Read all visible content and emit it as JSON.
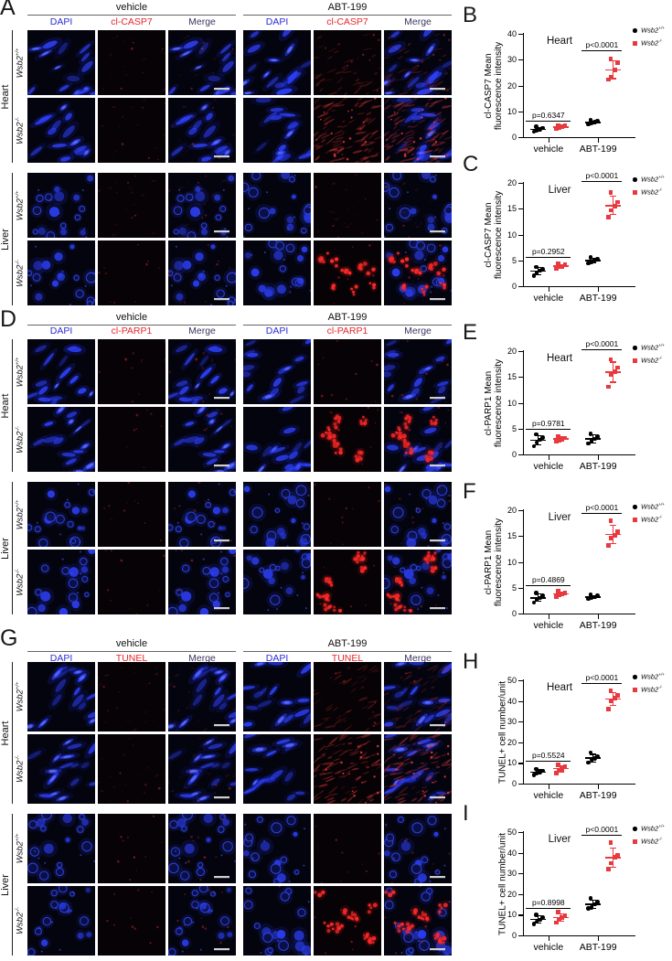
{
  "figure": {
    "treatments": [
      "vehicle",
      "ABT-199"
    ],
    "legend": {
      "wildtype": {
        "base": "Wsb2",
        "sup": "+/+"
      },
      "knockout": {
        "base": "Wsb2",
        "sup": "-/-"
      }
    },
    "colors": {
      "dapi_label": "#2b2bd8",
      "marker_label": "#e8262c",
      "merge_label": "#3b3560",
      "wildtype_point": "#000000",
      "knockout_point": "#e8393f",
      "nucleus_blue": "#2e40f5",
      "signal_red": "#d83838",
      "scalebar": "#cfcfcf"
    },
    "micro_panels": [
      {
        "letter": "A",
        "marker": "cl-CASP7",
        "columns": [
          "DAPI",
          "cl-CASP7",
          "Merge"
        ],
        "rows": [
          {
            "organ": "Heart",
            "morphology": "elongated",
            "genotype": "wildtype",
            "style": "haze",
            "levels": {
              "vehicle": 1,
              "abt": 2
            }
          },
          {
            "organ": "Heart",
            "morphology": "elongated",
            "genotype": "knockout",
            "style": "haze",
            "levels": {
              "vehicle": 1,
              "abt": 3
            }
          },
          {
            "organ": "Liver",
            "morphology": "round",
            "genotype": "wildtype",
            "style": "haze",
            "levels": {
              "vehicle": 1,
              "abt": 1
            }
          },
          {
            "organ": "Liver",
            "morphology": "round",
            "genotype": "knockout",
            "style": "dots",
            "levels": {
              "vehicle": 1,
              "abt": 3
            }
          }
        ]
      },
      {
        "letter": "D",
        "marker": "cl-PARP1",
        "columns": [
          "DAPI",
          "cl-PARP1",
          "Merge"
        ],
        "rows": [
          {
            "organ": "Heart",
            "morphology": "elongated",
            "genotype": "wildtype",
            "style": "dots",
            "levels": {
              "vehicle": 1,
              "abt": 1
            }
          },
          {
            "organ": "Heart",
            "morphology": "elongated",
            "genotype": "knockout",
            "style": "dots",
            "levels": {
              "vehicle": 1,
              "abt": 3
            }
          },
          {
            "organ": "Liver",
            "morphology": "round",
            "genotype": "wildtype",
            "style": "dots",
            "levels": {
              "vehicle": 1,
              "abt": 1
            }
          },
          {
            "organ": "Liver",
            "morphology": "round",
            "genotype": "knockout",
            "style": "dots",
            "levels": {
              "vehicle": 1,
              "abt": 3
            }
          }
        ]
      },
      {
        "letter": "G",
        "marker": "TUNEL",
        "columns": [
          "DAPI",
          "TUNEL",
          "Merge"
        ],
        "rows": [
          {
            "organ": "Heart",
            "morphology": "elongated",
            "genotype": "wildtype",
            "style": "haze",
            "levels": {
              "vehicle": 1,
              "abt": 2
            }
          },
          {
            "organ": "Heart",
            "morphology": "elongated",
            "genotype": "knockout",
            "style": "haze",
            "levels": {
              "vehicle": 1,
              "abt": 3
            }
          },
          {
            "organ": "Liver",
            "morphology": "round",
            "genotype": "wildtype",
            "style": "dots",
            "levels": {
              "vehicle": 1,
              "abt": 1
            }
          },
          {
            "organ": "Liver",
            "morphology": "round",
            "genotype": "knockout",
            "style": "dots",
            "levels": {
              "vehicle": 1,
              "abt": 3
            }
          }
        ]
      }
    ],
    "chart_data": [
      {
        "letter": "B",
        "type": "scatter",
        "title": "Heart",
        "ylabel_lines": [
          "cl-CASP7 Mean",
          "fluorescence intensity"
        ],
        "ylim": [
          0,
          40
        ],
        "yticks": [
          0,
          10,
          20,
          30,
          40
        ],
        "categories": [
          "vehicle",
          "ABT-199"
        ],
        "series": [
          {
            "name": "wildtype",
            "marker": "circle",
            "values": {
              "vehicle": [
                2.1,
                2.6,
                3.1,
                3.6,
                4.1
              ],
              "ABT-199": [
                5.0,
                5.4,
                5.8,
                6.1,
                6.5
              ]
            }
          },
          {
            "name": "knockout",
            "marker": "square",
            "values": {
              "vehicle": [
                3.3,
                3.7,
                4.0,
                4.3,
                4.6
              ],
              "ABT-199": [
                22.3,
                23.2,
                26.0,
                28.8,
                30.2
              ]
            }
          }
        ],
        "pvalues": {
          "vehicle": {
            "text": "p=0.6347",
            "line_y": 6.2
          },
          "ABT-199": {
            "text": "p<0.0001",
            "line_y": 33.5
          }
        }
      },
      {
        "letter": "C",
        "type": "scatter",
        "title": "Liver",
        "ylabel_lines": [
          "cl-CASP7 Mean",
          "fluorescence intensity"
        ],
        "ylim": [
          0,
          20
        ],
        "yticks": [
          0,
          5,
          10,
          15,
          20
        ],
        "categories": [
          "vehicle",
          "ABT-199"
        ],
        "series": [
          {
            "name": "wildtype",
            "marker": "circle",
            "values": {
              "vehicle": [
                2.0,
                2.6,
                3.0,
                3.3,
                3.7
              ],
              "ABT-199": [
                4.4,
                4.7,
                5.0,
                5.2,
                5.6
              ]
            }
          },
          {
            "name": "knockout",
            "marker": "square",
            "values": {
              "vehicle": [
                3.4,
                3.7,
                3.9,
                4.1,
                4.3
              ],
              "ABT-199": [
                13.4,
                14.7,
                15.5,
                16.3,
                18.2
              ]
            }
          }
        ],
        "pvalues": {
          "vehicle": {
            "text": "p=0.2952",
            "line_y": 5.7
          },
          "ABT-199": {
            "text": "p<0.0001",
            "line_y": 20.4
          }
        }
      },
      {
        "letter": "E",
        "type": "scatter",
        "title": "Heart",
        "ylabel_lines": [
          "cl-PARP1 Mean",
          "fluorescence intensity"
        ],
        "ylim": [
          0,
          20
        ],
        "yticks": [
          0,
          5,
          10,
          15,
          20
        ],
        "categories": [
          "vehicle",
          "ABT-199"
        ],
        "series": [
          {
            "name": "wildtype",
            "marker": "circle",
            "values": {
              "vehicle": [
                1.6,
                2.3,
                2.8,
                3.3,
                3.9
              ],
              "ABT-199": [
                2.1,
                2.6,
                3.0,
                3.4,
                4.0
              ]
            }
          },
          {
            "name": "knockout",
            "marker": "square",
            "values": {
              "vehicle": [
                2.5,
                2.8,
                3.0,
                3.2,
                3.5
              ],
              "ABT-199": [
                13.1,
                15.4,
                16.0,
                16.8,
                18.4
              ]
            }
          }
        ],
        "pvalues": {
          "vehicle": {
            "text": "p=0.9781",
            "line_y": 4.9
          },
          "ABT-199": {
            "text": "p<0.0001",
            "line_y": 20.4
          }
        }
      },
      {
        "letter": "F",
        "type": "scatter",
        "title": "Liver",
        "ylabel_lines": [
          "cl-PARP1 Mean",
          "fluorescence intensity"
        ],
        "ylim": [
          0,
          20
        ],
        "yticks": [
          0,
          5,
          10,
          15,
          20
        ],
        "categories": [
          "vehicle",
          "ABT-199"
        ],
        "series": [
          {
            "name": "wildtype",
            "marker": "circle",
            "values": {
              "vehicle": [
                2.1,
                2.7,
                3.0,
                3.4,
                4.0
              ],
              "ABT-199": [
                2.8,
                3.0,
                3.2,
                3.4,
                3.6
              ]
            }
          },
          {
            "name": "knockout",
            "marker": "square",
            "values": {
              "vehicle": [
                3.3,
                3.6,
                3.8,
                4.0,
                4.3
              ],
              "ABT-199": [
                13.2,
                14.6,
                15.2,
                15.8,
                18.0
              ]
            }
          }
        ],
        "pvalues": {
          "vehicle": {
            "text": "p=0.4869",
            "line_y": 5.4
          },
          "ABT-199": {
            "text": "p<0.0001",
            "line_y": 19.5
          }
        }
      },
      {
        "letter": "H",
        "type": "scatter",
        "title": "Heart",
        "ylabel_lines": [
          "TUNEL+ cell number/unit"
        ],
        "ylim": [
          0,
          50
        ],
        "yticks": [
          0,
          10,
          20,
          30,
          40,
          50
        ],
        "categories": [
          "vehicle",
          "ABT-199"
        ],
        "series": [
          {
            "name": "wildtype",
            "marker": "circle",
            "values": {
              "vehicle": [
                4.2,
                5.0,
                5.6,
                6.2,
                7.0
              ],
              "ABT-199": [
                10.2,
                11.5,
                12.2,
                13.0,
                15.0
              ]
            }
          },
          {
            "name": "knockout",
            "marker": "square",
            "values": {
              "vehicle": [
                5.2,
                6.5,
                7.4,
                8.2,
                9.0
              ],
              "ABT-199": [
                36.2,
                40.0,
                41.5,
                42.6,
                44.8
              ]
            }
          }
        ],
        "pvalues": {
          "vehicle": {
            "text": "p=0.5524",
            "line_y": 11.0
          },
          "ABT-199": {
            "text": "p<0.0001",
            "line_y": 48.5
          }
        }
      },
      {
        "letter": "I",
        "type": "scatter",
        "title": "Liver",
        "ylabel_lines": [
          "TUNEL+ cell number/unit"
        ],
        "ylim": [
          0,
          50
        ],
        "yticks": [
          0,
          10,
          20,
          30,
          40,
          50
        ],
        "categories": [
          "vehicle",
          "ABT-199"
        ],
        "series": [
          {
            "name": "wildtype",
            "marker": "circle",
            "values": {
              "vehicle": [
                5.6,
                6.6,
                7.5,
                8.6,
                10.0
              ],
              "ABT-199": [
                13.0,
                13.6,
                15.0,
                16.2,
                18.0
              ]
            }
          },
          {
            "name": "knockout",
            "marker": "square",
            "values": {
              "vehicle": [
                6.2,
                7.6,
                8.6,
                9.6,
                11.2
              ],
              "ABT-199": [
                32.2,
                35.0,
                38.0,
                38.6,
                44.8
              ]
            }
          }
        ],
        "pvalues": {
          "vehicle": {
            "text": "p=0.8998",
            "line_y": 13.2
          },
          "ABT-199": {
            "text": "p<0.0001",
            "line_y": 48.5
          }
        }
      }
    ]
  }
}
